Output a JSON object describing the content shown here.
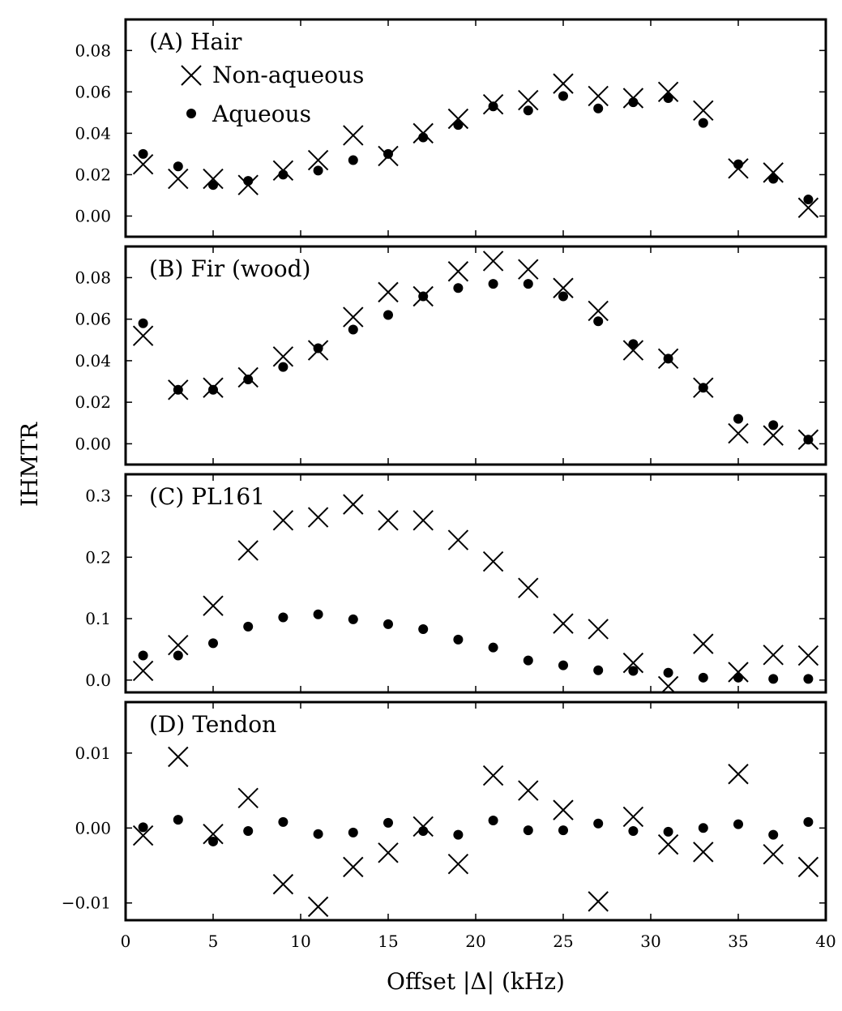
{
  "figure": {
    "ylabel": "IHMTR",
    "xlabel": "Offset |Δ| (kHz)"
  },
  "legend": {
    "non_aqueous": "Non-aqueous",
    "aqueous": "Aqueous"
  },
  "chart_data": [
    {
      "type": "scatter",
      "title": "(A) Hair",
      "xlim": [
        0,
        40
      ],
      "ylim": [
        -0.01,
        0.095
      ],
      "y_ticks": [
        0.0,
        0.02,
        0.04,
        0.06,
        0.08
      ],
      "y_tick_labels": [
        "0.00",
        "0.02",
        "0.04",
        "0.06",
        "0.08"
      ],
      "x": [
        1,
        3,
        5,
        7,
        9,
        11,
        13,
        15,
        17,
        19,
        21,
        23,
        25,
        27,
        29,
        31,
        33,
        35,
        37,
        39
      ],
      "series": [
        {
          "name": "Non-aqueous",
          "marker": "x",
          "values": [
            0.025,
            0.018,
            0.018,
            0.015,
            0.022,
            0.027,
            0.039,
            0.029,
            0.04,
            0.047,
            0.054,
            0.056,
            0.064,
            0.058,
            0.057,
            0.06,
            0.051,
            0.023,
            0.021,
            0.004
          ]
        },
        {
          "name": "Aqueous",
          "marker": "dot",
          "values": [
            0.03,
            0.024,
            0.015,
            0.017,
            0.02,
            0.022,
            0.027,
            0.03,
            0.038,
            0.044,
            0.053,
            0.051,
            0.058,
            0.052,
            0.055,
            0.057,
            0.045,
            0.025,
            0.018,
            0.008
          ]
        }
      ]
    },
    {
      "type": "scatter",
      "title": "(B) Fir (wood)",
      "xlim": [
        0,
        40
      ],
      "ylim": [
        -0.01,
        0.095
      ],
      "y_ticks": [
        0.0,
        0.02,
        0.04,
        0.06,
        0.08
      ],
      "y_tick_labels": [
        "0.00",
        "0.02",
        "0.04",
        "0.06",
        "0.08"
      ],
      "x": [
        1,
        3,
        5,
        7,
        9,
        11,
        13,
        15,
        17,
        19,
        21,
        23,
        25,
        27,
        29,
        31,
        33,
        35,
        37,
        39
      ],
      "series": [
        {
          "name": "Non-aqueous",
          "marker": "x",
          "values": [
            0.052,
            0.026,
            0.027,
            0.032,
            0.042,
            0.045,
            0.061,
            0.073,
            0.071,
            0.083,
            0.088,
            0.084,
            0.075,
            0.064,
            0.045,
            0.041,
            0.027,
            0.005,
            0.004,
            0.002
          ]
        },
        {
          "name": "Aqueous",
          "marker": "dot",
          "values": [
            0.058,
            0.026,
            0.026,
            0.031,
            0.037,
            0.046,
            0.055,
            0.062,
            0.071,
            0.075,
            0.077,
            0.077,
            0.071,
            0.059,
            0.048,
            0.041,
            0.027,
            0.012,
            0.009,
            0.002
          ]
        }
      ]
    },
    {
      "type": "scatter",
      "title": "(C) PL161",
      "xlim": [
        0,
        40
      ],
      "ylim": [
        -0.02,
        0.335
      ],
      "y_ticks": [
        0.0,
        0.1,
        0.2,
        0.3
      ],
      "y_tick_labels": [
        "0.0",
        "0.1",
        "0.2",
        "0.3"
      ],
      "x": [
        1,
        3,
        5,
        7,
        9,
        11,
        13,
        15,
        17,
        19,
        21,
        23,
        25,
        27,
        29,
        31,
        33,
        35,
        37,
        39
      ],
      "series": [
        {
          "name": "Non-aqueous",
          "marker": "x",
          "values": [
            0.015,
            0.057,
            0.121,
            0.211,
            0.26,
            0.265,
            0.286,
            0.26,
            0.26,
            0.228,
            0.193,
            0.15,
            0.092,
            0.083,
            0.028,
            -0.01,
            0.059,
            0.013,
            0.041,
            0.04
          ]
        },
        {
          "name": "Aqueous",
          "marker": "dot",
          "values": [
            0.04,
            0.04,
            0.06,
            0.087,
            0.102,
            0.107,
            0.099,
            0.091,
            0.083,
            0.066,
            0.053,
            0.032,
            0.024,
            0.016,
            0.015,
            0.012,
            0.004,
            0.004,
            0.002,
            0.002
          ]
        }
      ]
    },
    {
      "type": "scatter",
      "title": "(D) Tendon",
      "xlim": [
        0,
        40
      ],
      "ylim": [
        -0.0123,
        0.0168
      ],
      "y_ticks": [
        -0.01,
        0.0,
        0.01
      ],
      "y_tick_labels": [
        "−0.01",
        "0.00",
        "0.01"
      ],
      "x": [
        1,
        3,
        5,
        7,
        9,
        11,
        13,
        15,
        17,
        19,
        21,
        23,
        25,
        27,
        29,
        31,
        33,
        35,
        37,
        39
      ],
      "series": [
        {
          "name": "Non-aqueous",
          "marker": "x",
          "values": [
            -0.001,
            0.0095,
            -0.0008,
            0.004,
            -0.0075,
            -0.0105,
            -0.0052,
            -0.0033,
            0.0002,
            -0.0048,
            0.007,
            0.005,
            0.0024,
            -0.0098,
            0.0015,
            -0.0022,
            -0.0032,
            0.0072,
            -0.0035,
            -0.0052
          ]
        },
        {
          "name": "Aqueous",
          "marker": "dot",
          "values": [
            0.0001,
            0.0011,
            -0.0018,
            -0.0004,
            0.0008,
            -0.0008,
            -0.0006,
            0.0007,
            -0.0004,
            -0.0009,
            0.001,
            -0.0003,
            -0.0003,
            0.0006,
            -0.0004,
            -0.0005,
            0.0,
            0.0005,
            -0.0009,
            0.0008
          ]
        }
      ]
    }
  ],
  "x_axis": {
    "ticks": [
      0,
      5,
      10,
      15,
      20,
      25,
      30,
      35,
      40
    ],
    "tick_labels": [
      "0",
      "5",
      "10",
      "15",
      "20",
      "25",
      "30",
      "35",
      "40"
    ]
  }
}
